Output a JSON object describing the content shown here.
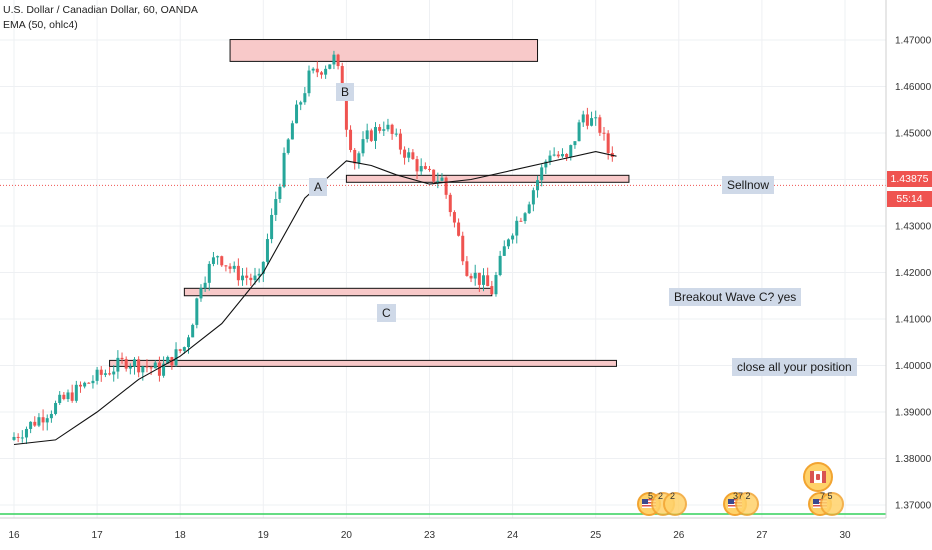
{
  "header": {
    "symbol_line": "U.S. Dollar / Canadian Dollar, 60, OANDA",
    "indicator_line": "EMA (50, ohlc4)"
  },
  "price_scale": {
    "labels": [
      "1.47000",
      "1.46000",
      "1.45000",
      "1.44000",
      "1.43000",
      "1.42000",
      "1.41000",
      "1.40000",
      "1.39000",
      "1.38000",
      "1.37000"
    ],
    "current_price": "1.43875",
    "countdown": "55:14",
    "current_color": "#ef5350"
  },
  "annotations": {
    "wave_a": "A",
    "wave_b": "B",
    "wave_c": "C",
    "sell_now": "Sellnow",
    "breakout": "Breakout Wave C? yes",
    "close_all": "close all your position"
  },
  "events": {
    "us_1": "5",
    "us_2": "2",
    "us_3": "2",
    "us_4": "37 2",
    "ca_1": "7 5"
  },
  "chart_data": {
    "type": "candlestick",
    "title": "U.S. Dollar / Canadian Dollar, 60, OANDA",
    "x_tick_labels": [
      "16",
      "17",
      "18",
      "19",
      "20",
      "23",
      "24",
      "25",
      "26",
      "27",
      "30"
    ],
    "ylim": [
      1.3655,
      1.4785
    ],
    "y_ticks": [
      1.47,
      1.46,
      1.45,
      1.44,
      1.43,
      1.42,
      1.41,
      1.4,
      1.39,
      1.38,
      1.37
    ],
    "up_color": "#26a69a",
    "down_color": "#ef5350",
    "ema_color": "#000000",
    "zone_fill": "#f8c9c9",
    "series": [
      {
        "name": "USD/CAD",
        "path_x": [
          0,
          0.6,
          1.0,
          1.4,
          1.8,
          2.1,
          2.2,
          2.3,
          2.5,
          2.6,
          2.7,
          3.0,
          3.2,
          3.4,
          3.6,
          3.9,
          4.0,
          4.05,
          4.15,
          4.3,
          4.5,
          4.7,
          5.0,
          5.2,
          5.5,
          5.8,
          6.0,
          6.2,
          6.5,
          6.7,
          6.9,
          7.1,
          7.2
        ],
        "path_y": [
          1.384,
          1.392,
          1.397,
          1.401,
          1.399,
          1.404,
          1.41,
          1.418,
          1.424,
          1.422,
          1.42,
          1.418,
          1.436,
          1.452,
          1.462,
          1.466,
          1.46,
          1.452,
          1.444,
          1.449,
          1.452,
          1.447,
          1.441,
          1.44,
          1.421,
          1.416,
          1.428,
          1.434,
          1.446,
          1.444,
          1.454,
          1.451,
          1.446
        ]
      },
      {
        "name": "EMA (50, ohlc4)",
        "x": [
          0,
          0.5,
          1.0,
          1.5,
          2.0,
          2.5,
          3.0,
          3.5,
          4.0,
          4.3,
          4.6,
          5.0,
          5.5,
          6.0,
          6.5,
          7.0,
          7.25
        ],
        "y": [
          1.383,
          1.384,
          1.39,
          1.397,
          1.402,
          1.409,
          1.42,
          1.436,
          1.444,
          1.443,
          1.441,
          1.439,
          1.44,
          1.442,
          1.444,
          1.446,
          1.445
        ]
      }
    ],
    "zones": [
      {
        "x": [
          2.6,
          6.3
        ],
        "y": [
          1.4654,
          1.4701
        ]
      },
      {
        "x": [
          4.0,
          7.4
        ],
        "y": [
          1.4394,
          1.4409
        ]
      },
      {
        "x": [
          2.05,
          5.75
        ],
        "y": [
          1.415,
          1.4166
        ]
      },
      {
        "x": [
          1.15,
          7.25
        ],
        "y": [
          1.4003,
          1.4011
        ]
      }
    ],
    "hline": 1.43875
  }
}
